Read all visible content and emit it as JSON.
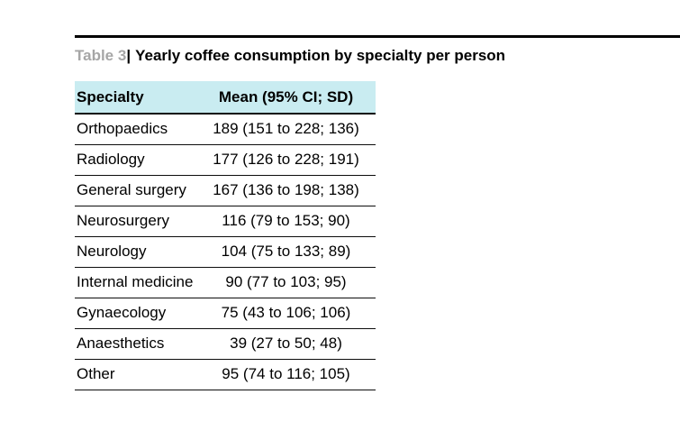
{
  "caption": {
    "label": "Table 3",
    "divider": "|",
    "title": "Yearly coffee consumption by specialty per person"
  },
  "table": {
    "columns": [
      "Specialty",
      "Mean (95% CI; SD)"
    ],
    "rows": [
      {
        "specialty": "Orthopaedics",
        "display": "189 (151 to 228; 136)",
        "mean": 189,
        "ci_low": 151,
        "ci_high": 228,
        "sd": 136
      },
      {
        "specialty": "Radiology",
        "display": "177 (126 to 228; 191)",
        "mean": 177,
        "ci_low": 126,
        "ci_high": 228,
        "sd": 191
      },
      {
        "specialty": "General surgery",
        "display": "167 (136 to 198; 138)",
        "mean": 167,
        "ci_low": 136,
        "ci_high": 198,
        "sd": 138
      },
      {
        "specialty": "Neurosurgery",
        "display": "116 (79 to 153; 90)",
        "mean": 116,
        "ci_low": 79,
        "ci_high": 153,
        "sd": 90
      },
      {
        "specialty": "Neurology",
        "display": "104 (75 to 133; 89)",
        "mean": 104,
        "ci_low": 75,
        "ci_high": 133,
        "sd": 89
      },
      {
        "specialty": "Internal medicine",
        "display": "90 (77 to 103; 95)",
        "mean": 90,
        "ci_low": 77,
        "ci_high": 103,
        "sd": 95
      },
      {
        "specialty": "Gynaecology",
        "display": "75 (43 to 106; 106)",
        "mean": 75,
        "ci_low": 43,
        "ci_high": 106,
        "sd": 106
      },
      {
        "specialty": "Anaesthetics",
        "display": "39 (27 to 50; 48)",
        "mean": 39,
        "ci_low": 27,
        "ci_high": 50,
        "sd": 48
      },
      {
        "specialty": "Other",
        "display": "95 (74 to 116; 105)",
        "mean": 95,
        "ci_low": 74,
        "ci_high": 116,
        "sd": 105
      }
    ]
  },
  "colors": {
    "header_bg": "#c9ecf1",
    "caption_label": "#a6a6a6",
    "rule": "#000000",
    "border": "#0d0d0d",
    "text": "#000000"
  },
  "chart_data": {
    "type": "table",
    "title": "Yearly coffee consumption by specialty per person",
    "columns": [
      "Specialty",
      "Mean (95% CI; SD)"
    ],
    "rows": [
      [
        "Orthopaedics",
        "189 (151 to 228; 136)"
      ],
      [
        "Radiology",
        "177 (126 to 228; 191)"
      ],
      [
        "General surgery",
        "167 (136 to 198; 138)"
      ],
      [
        "Neurosurgery",
        "116 (79 to 153; 90)"
      ],
      [
        "Neurology",
        "104 (75 to 133; 89)"
      ],
      [
        "Internal medicine",
        "90 (77 to 103; 95)"
      ],
      [
        "Gynaecology",
        "75 (43 to 106; 106)"
      ],
      [
        "Anaesthetics",
        "39 (27 to 50; 48)"
      ],
      [
        "Other",
        "95 (74 to 116; 105)"
      ]
    ]
  }
}
